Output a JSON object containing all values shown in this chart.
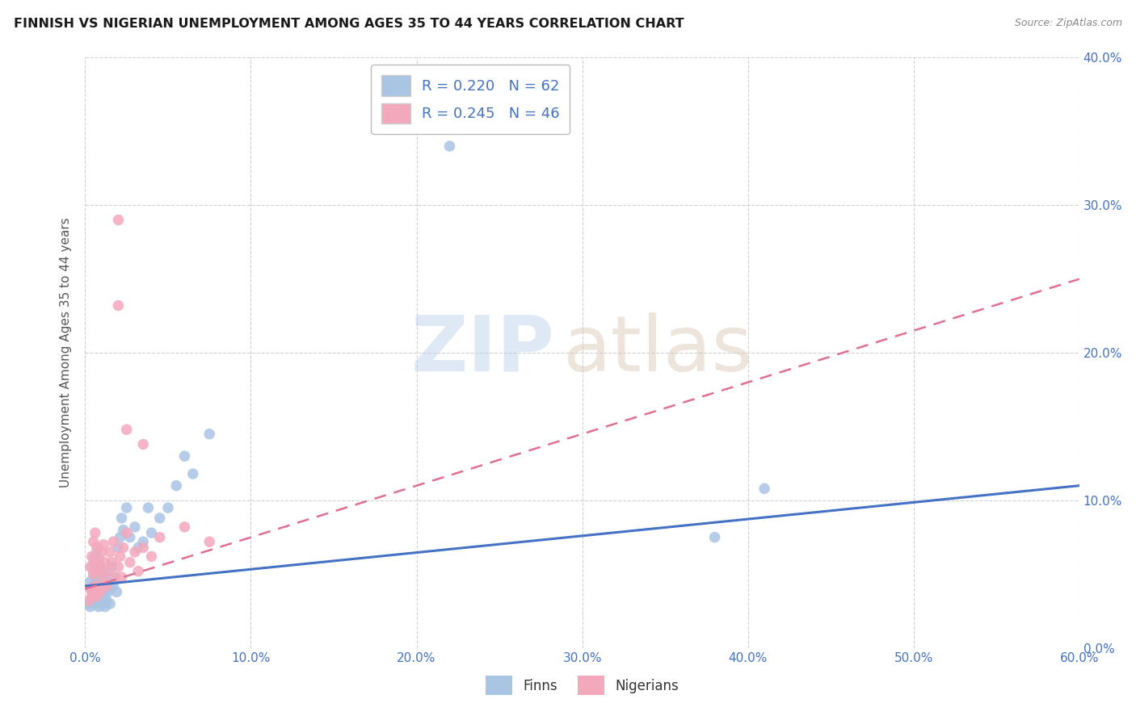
{
  "title": "FINNISH VS NIGERIAN UNEMPLOYMENT AMONG AGES 35 TO 44 YEARS CORRELATION CHART",
  "source": "Source: ZipAtlas.com",
  "ylabel": "Unemployment Among Ages 35 to 44 years",
  "xlabel_ticks": [
    "0.0%",
    "10.0%",
    "20.0%",
    "30.0%",
    "40.0%",
    "50.0%",
    "60.0%"
  ],
  "ylabel_right_ticks": [
    "0.0%",
    "10.0%",
    "20.0%",
    "30.0%",
    "40.0%"
  ],
  "xlim": [
    0.0,
    0.6
  ],
  "ylim": [
    0.0,
    0.4
  ],
  "finn_color": "#aac4e4",
  "nigerian_color": "#f4a8bc",
  "finn_line_color": "#4472c4",
  "nigerian_line_color": "#e07090",
  "finn_R": 0.22,
  "finn_N": 62,
  "nigerian_R": 0.245,
  "nigerian_N": 46,
  "background_color": "#ffffff",
  "grid_color": "#cccccc",
  "title_color": "#1a1a1a",
  "axis_label_color": "#555555",
  "tick_color": "#4472c4",
  "finn_x": [
    0.002,
    0.003,
    0.003,
    0.004,
    0.004,
    0.004,
    0.005,
    0.005,
    0.005,
    0.005,
    0.006,
    0.006,
    0.006,
    0.006,
    0.007,
    0.007,
    0.007,
    0.007,
    0.008,
    0.008,
    0.008,
    0.008,
    0.009,
    0.009,
    0.009,
    0.01,
    0.01,
    0.01,
    0.011,
    0.011,
    0.012,
    0.012,
    0.012,
    0.013,
    0.013,
    0.014,
    0.015,
    0.015,
    0.016,
    0.017,
    0.018,
    0.019,
    0.02,
    0.021,
    0.022,
    0.023,
    0.025,
    0.027,
    0.03,
    0.032,
    0.035,
    0.038,
    0.04,
    0.045,
    0.05,
    0.055,
    0.06,
    0.065,
    0.075,
    0.22,
    0.38,
    0.41
  ],
  "finn_y": [
    0.03,
    0.028,
    0.045,
    0.032,
    0.04,
    0.055,
    0.035,
    0.042,
    0.05,
    0.06,
    0.03,
    0.038,
    0.048,
    0.058,
    0.032,
    0.04,
    0.05,
    0.065,
    0.028,
    0.038,
    0.048,
    0.06,
    0.032,
    0.042,
    0.055,
    0.03,
    0.04,
    0.052,
    0.035,
    0.048,
    0.028,
    0.038,
    0.05,
    0.032,
    0.045,
    0.038,
    0.03,
    0.042,
    0.055,
    0.042,
    0.048,
    0.038,
    0.068,
    0.075,
    0.088,
    0.08,
    0.095,
    0.075,
    0.082,
    0.068,
    0.072,
    0.095,
    0.078,
    0.088,
    0.095,
    0.11,
    0.13,
    0.118,
    0.145,
    0.34,
    0.075,
    0.108
  ],
  "nigerian_x": [
    0.002,
    0.003,
    0.003,
    0.004,
    0.004,
    0.005,
    0.005,
    0.005,
    0.006,
    0.006,
    0.006,
    0.007,
    0.007,
    0.007,
    0.008,
    0.008,
    0.009,
    0.009,
    0.01,
    0.01,
    0.011,
    0.011,
    0.012,
    0.013,
    0.014,
    0.015,
    0.016,
    0.017,
    0.018,
    0.02,
    0.021,
    0.022,
    0.023,
    0.025,
    0.027,
    0.03,
    0.032,
    0.035,
    0.04,
    0.045,
    0.02,
    0.02,
    0.025,
    0.035,
    0.06,
    0.075
  ],
  "nigerian_y": [
    0.032,
    0.04,
    0.055,
    0.035,
    0.062,
    0.038,
    0.05,
    0.072,
    0.042,
    0.058,
    0.078,
    0.035,
    0.052,
    0.068,
    0.042,
    0.06,
    0.038,
    0.055,
    0.042,
    0.065,
    0.048,
    0.07,
    0.058,
    0.042,
    0.052,
    0.065,
    0.058,
    0.072,
    0.048,
    0.055,
    0.062,
    0.048,
    0.068,
    0.078,
    0.058,
    0.065,
    0.052,
    0.068,
    0.062,
    0.075,
    0.29,
    0.232,
    0.148,
    0.138,
    0.082,
    0.072
  ],
  "finn_trend_x0": 0.0,
  "finn_trend_y0": 0.042,
  "finn_trend_x1": 0.6,
  "finn_trend_y1": 0.11,
  "nig_trend_x0": 0.0,
  "nig_trend_y0": 0.04,
  "nig_trend_x1": 0.6,
  "nig_trend_y1": 0.25
}
